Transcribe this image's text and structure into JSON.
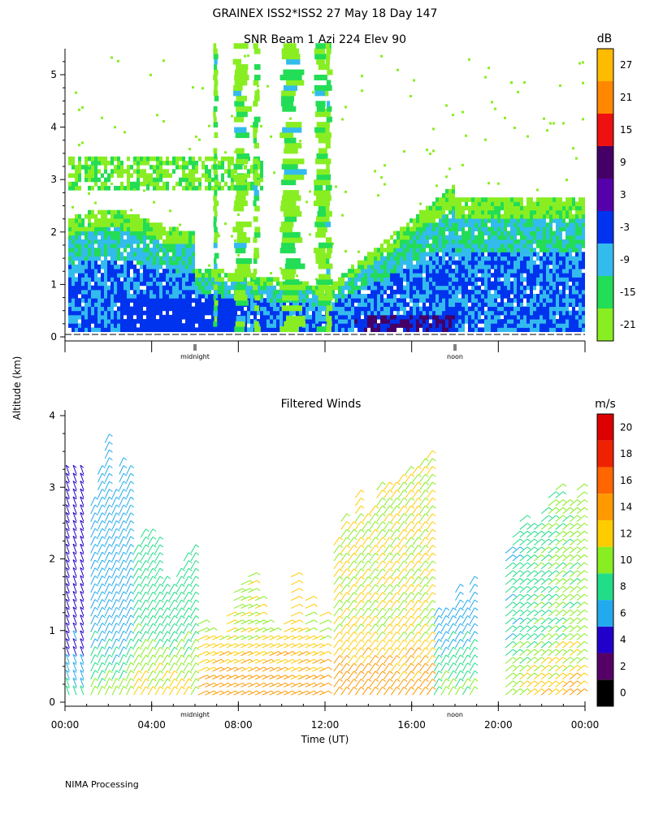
{
  "main_title": "GRAINEX ISS2*ISS2  27 May 18 Day 147",
  "ylabel": "Altitude (km)",
  "footer": "NIMA Processing",
  "chart_data": [
    {
      "type": "heatmap",
      "title": "SNR Beam 1 Azi 224 Elev 90",
      "ylim": [
        0,
        5.5
      ],
      "yticks": [
        "0",
        "1",
        "2",
        "3",
        "4",
        "5"
      ],
      "time_markers": [
        "midnight",
        "noon"
      ],
      "colorbar": {
        "unit": "dB",
        "tick_labels": [
          "-21",
          "-15",
          "-9",
          "-3",
          "3",
          "9",
          "15",
          "21",
          "27"
        ],
        "colors": [
          "#88ee22",
          "#22dd55",
          "#33bbee",
          "#0033ee",
          "#5500aa",
          "#440066",
          "#ee1111",
          "#ff8800",
          "#ffbb00"
        ]
      }
    },
    {
      "type": "heatmap",
      "title": "Filtered Winds",
      "xlabel": "Time (UT)",
      "xticks": [
        "00:00",
        "04:00",
        "08:00",
        "12:00",
        "16:00",
        "20:00",
        "00:00"
      ],
      "ylim": [
        0,
        4.1
      ],
      "yticks": [
        "0",
        "1",
        "2",
        "3",
        "4"
      ],
      "time_markers": [
        "midnight",
        "noon"
      ],
      "colorbar": {
        "unit": "m/s",
        "tick_labels": [
          "0",
          "2",
          "4",
          "6",
          "8",
          "10",
          "12",
          "14",
          "16",
          "18",
          "20"
        ],
        "colors": [
          "#000000",
          "#550066",
          "#2200cc",
          "#22aaee",
          "#22dd88",
          "#88ee22",
          "#ffcc00",
          "#ff9900",
          "#ff6600",
          "#ee2200",
          "#dd0000"
        ]
      }
    }
  ]
}
